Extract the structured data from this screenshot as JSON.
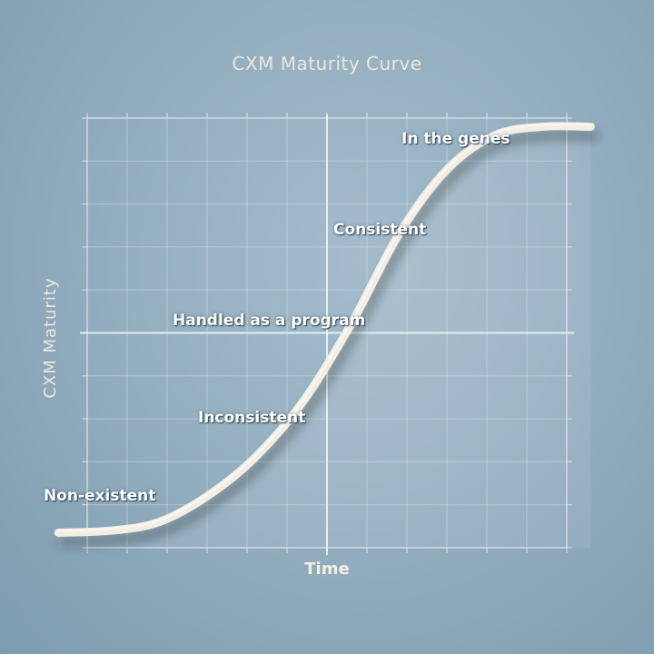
{
  "chart_data": {
    "type": "line",
    "title": "CXM Maturity Curve",
    "xlabel": "Time",
    "ylabel": "CXM Maturity",
    "grid": true,
    "legend": "none",
    "xlim": [
      0,
      10
    ],
    "ylim": [
      0,
      10
    ],
    "series": [
      {
        "values": [
          {
            "x": -0.6,
            "y": 0.35
          },
          {
            "x": 0.5,
            "y": 0.4
          },
          {
            "x": 1.5,
            "y": 0.6
          },
          {
            "x": 2.5,
            "y": 1.2
          },
          {
            "x": 3.5,
            "y": 2.1
          },
          {
            "x": 4.5,
            "y": 3.4
          },
          {
            "x": 5.5,
            "y": 5.2
          },
          {
            "x": 6.5,
            "y": 7.3
          },
          {
            "x": 7.5,
            "y": 8.8
          },
          {
            "x": 8.5,
            "y": 9.6
          },
          {
            "x": 9.5,
            "y": 9.8
          },
          {
            "x": 10.5,
            "y": 9.8
          }
        ]
      }
    ],
    "annotations": [
      {
        "text": "Non-existent"
      },
      {
        "text": "Inconsistent"
      },
      {
        "text": "Handled as a program"
      },
      {
        "text": "Consistent"
      },
      {
        "text": "In the genes"
      }
    ],
    "colors": {
      "background": "#94afc0",
      "grid": "#dbe6ec",
      "curve": "#f3eee4",
      "text": "#ffffff"
    }
  }
}
